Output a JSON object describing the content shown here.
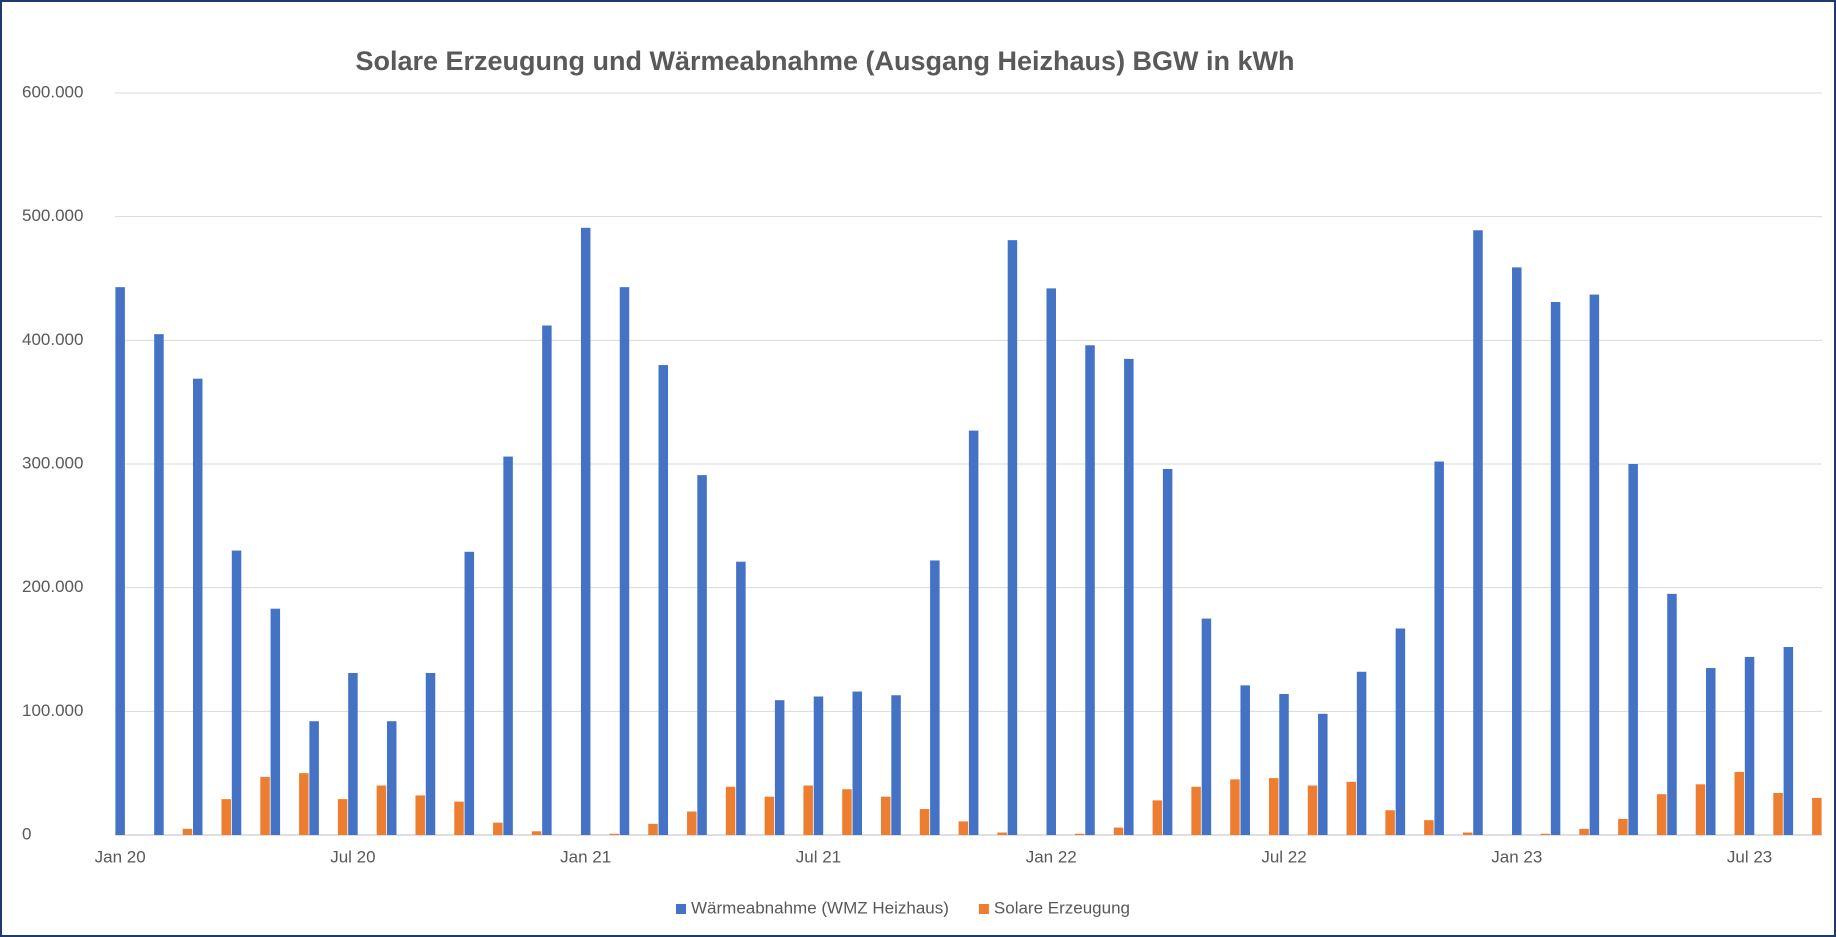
{
  "chart_data": {
    "type": "bar",
    "title": "Solare Erzeugung und Wärmeabnahme (Ausgang Heizhaus) BGW in kWh",
    "categories": [
      "Jan 20",
      null,
      null,
      null,
      null,
      null,
      "Jul 20",
      null,
      null,
      null,
      null,
      null,
      "Jan 21",
      null,
      null,
      null,
      null,
      null,
      "Jul 21",
      null,
      null,
      null,
      null,
      null,
      "Jan 22",
      null,
      null,
      null,
      null,
      null,
      "Jul 22",
      null,
      null,
      null,
      null,
      null,
      "Jan 23",
      null,
      null,
      null,
      null,
      null,
      "Jul 23",
      null
    ],
    "series": [
      {
        "name": "Wärmeabnahme (WMZ Heizhaus)",
        "color": "#4472c4",
        "values": [
          443000,
          405000,
          369000,
          230000,
          183000,
          92000,
          131000,
          92000,
          131000,
          229000,
          306000,
          412000,
          491000,
          443000,
          380000,
          291000,
          221000,
          109000,
          112000,
          116000,
          113000,
          222000,
          327000,
          481000,
          442000,
          396000,
          385000,
          296000,
          175000,
          121000,
          114000,
          98000,
          132000,
          167000,
          302000,
          489000,
          459000,
          431000,
          437000,
          300000,
          195000,
          135000,
          144000,
          152000
        ]
      },
      {
        "name": "Solare Erzeugung",
        "color": "#ed7d31",
        "values": [
          0,
          5000,
          29000,
          47000,
          50000,
          29000,
          40000,
          32000,
          27000,
          10000,
          3000,
          0,
          1000,
          9000,
          19000,
          39000,
          31000,
          40000,
          37000,
          31000,
          21000,
          11000,
          2000,
          0,
          1000,
          6000,
          28000,
          39000,
          45000,
          46000,
          40000,
          43000,
          20000,
          12000,
          2000,
          0,
          1000,
          5000,
          13000,
          33000,
          41000,
          51000,
          34000,
          30000
        ]
      }
    ],
    "ylim": [
      0,
      600000
    ],
    "yticks": [
      0,
      {
        "value": 100000,
        "label": "100.000"
      },
      {
        "value": 200000,
        "label": "200.000"
      },
      {
        "value": 300000,
        "label": "300.000"
      },
      {
        "value": 400000,
        "label": "400.000"
      },
      {
        "value": 500000,
        "label": "500.000"
      },
      {
        "value": 600000,
        "label": "600.000"
      }
    ],
    "grid": true,
    "legend": "bottom"
  }
}
